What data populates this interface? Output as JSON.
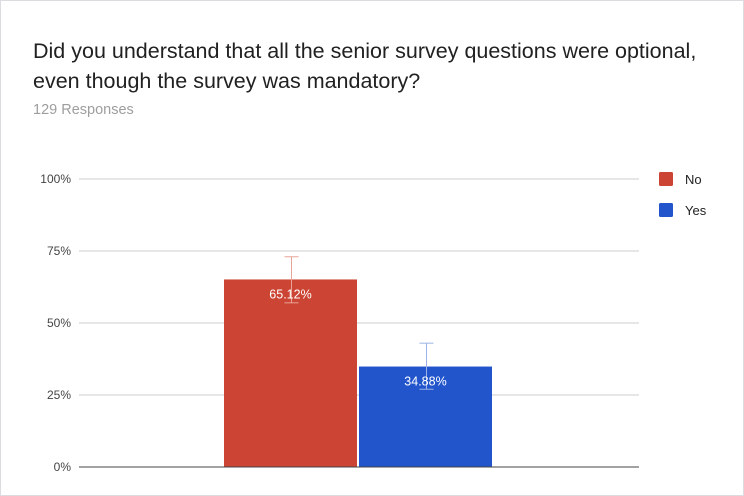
{
  "card": {
    "title": "Did you understand that all the senior survey questions were optional, even though the survey was mandatory?",
    "subtitle": "129 Responses"
  },
  "colors": {
    "gridline": "#cccccc",
    "axis": "#444444",
    "tick_text": "#444444",
    "label_text": "#ffffff",
    "legend_text": "#222222"
  },
  "chart_data": {
    "type": "bar",
    "categories": [
      ""
    ],
    "series": [
      {
        "name": "No",
        "values": [
          65.12
        ],
        "labels": [
          "65.12%"
        ],
        "error_upper": [
          73
        ],
        "error_lower": [
          57
        ],
        "color": "#cc4433"
      },
      {
        "name": "Yes",
        "values": [
          34.88
        ],
        "labels": [
          "34.88%"
        ],
        "error_upper": [
          43
        ],
        "error_lower": [
          27
        ],
        "color": "#2255cc"
      }
    ],
    "ylim": [
      0,
      100
    ],
    "yticks": [
      0,
      25,
      50,
      75,
      100
    ],
    "ytick_labels": [
      "0%",
      "25%",
      "50%",
      "75%",
      "100%"
    ],
    "grid": true,
    "legend_position": "right",
    "xlabel": "",
    "ylabel": ""
  }
}
